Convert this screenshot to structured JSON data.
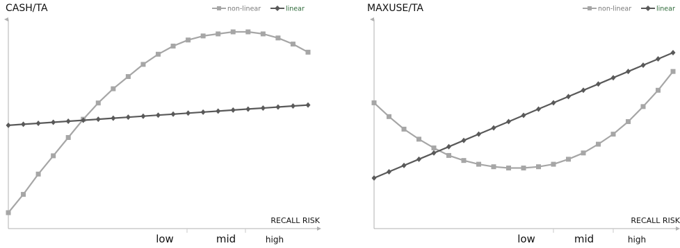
{
  "chart_data": [
    {
      "type": "line",
      "title": "CASH/TA",
      "xlabel": "RECALL RISK",
      "ylabel": "",
      "x_tick_labels": [
        "low",
        "mid",
        "high"
      ],
      "x": [
        1,
        2,
        3,
        4,
        5,
        6,
        7,
        8,
        9,
        10,
        11,
        12,
        13,
        14,
        15,
        16,
        17,
        18,
        19,
        20,
        21
      ],
      "series": [
        {
          "name": "non-linear",
          "color": "#a6a6a6",
          "marker": "square",
          "values": [
            0.13,
            0.22,
            0.32,
            0.41,
            0.5,
            0.59,
            0.67,
            0.74,
            0.8,
            0.86,
            0.91,
            0.95,
            0.98,
            1.0,
            1.01,
            1.02,
            1.02,
            1.01,
            0.99,
            0.96,
            0.92
          ]
        },
        {
          "name": "linear",
          "color": "#595959",
          "marker": "diamond",
          "values": [
            0.56,
            0.565,
            0.57,
            0.575,
            0.58,
            0.585,
            0.59,
            0.595,
            0.6,
            0.605,
            0.61,
            0.615,
            0.62,
            0.625,
            0.63,
            0.635,
            0.64,
            0.645,
            0.65,
            0.655,
            0.66
          ]
        }
      ]
    },
    {
      "type": "line",
      "title": "MAXUSE/TA",
      "xlabel": "RECALL RISK",
      "ylabel": "",
      "x_tick_labels": [
        "low",
        "mid",
        "high"
      ],
      "x": [
        1,
        2,
        3,
        4,
        5,
        6,
        7,
        8,
        9,
        10,
        11,
        12,
        13,
        14,
        15,
        16,
        17,
        18,
        19,
        20,
        21
      ],
      "series": [
        {
          "name": "non-linear",
          "color": "#a6a6a6",
          "marker": "square",
          "values": [
            0.9,
            0.79,
            0.69,
            0.61,
            0.54,
            0.48,
            0.44,
            0.41,
            0.39,
            0.38,
            0.38,
            0.39,
            0.41,
            0.45,
            0.5,
            0.57,
            0.65,
            0.75,
            0.87,
            1.0,
            1.15
          ]
        },
        {
          "name": "linear",
          "color": "#595959",
          "marker": "diamond",
          "values": [
            0.3,
            0.35,
            0.4,
            0.45,
            0.5,
            0.55,
            0.6,
            0.65,
            0.7,
            0.75,
            0.8,
            0.85,
            0.9,
            0.95,
            1.0,
            1.05,
            1.1,
            1.15,
            1.2,
            1.25,
            1.3
          ]
        }
      ]
    }
  ]
}
